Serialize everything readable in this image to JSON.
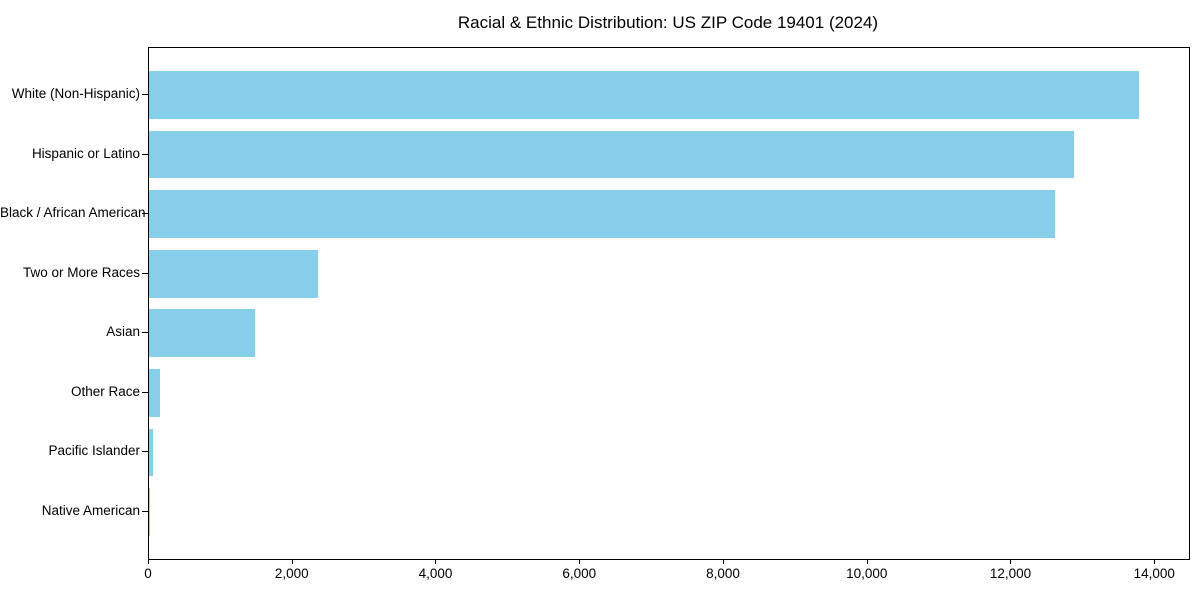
{
  "title": "Racial & Ethnic Distribution: US ZIP Code 19401 (2024)",
  "colors": {
    "bar": "#87CEEB",
    "background": "#ffffff",
    "text": "#000000",
    "axis": "#000000"
  },
  "chart_data": {
    "type": "bar",
    "orientation": "horizontal",
    "title": "Racial & Ethnic Distribution: US ZIP Code 19401 (2024)",
    "categories": [
      "White (Non-Hispanic)",
      "Hispanic or Latino",
      "Black / African American",
      "Two or More Races",
      "Asian",
      "Other Race",
      "Pacific Islander",
      "Native American"
    ],
    "values": [
      13780,
      12870,
      12610,
      2350,
      1480,
      155,
      50,
      15
    ],
    "bar_color": "#87CEEB",
    "xlabel": "",
    "ylabel": "",
    "xlim": [
      0,
      14470
    ],
    "xticks": [
      0,
      2000,
      4000,
      6000,
      8000,
      10000,
      12000,
      14000
    ],
    "xtick_labels": [
      "0",
      "2,000",
      "4,000",
      "6,000",
      "8,000",
      "10,000",
      "12,000",
      "14,000"
    ],
    "grid": false,
    "legend": null
  }
}
